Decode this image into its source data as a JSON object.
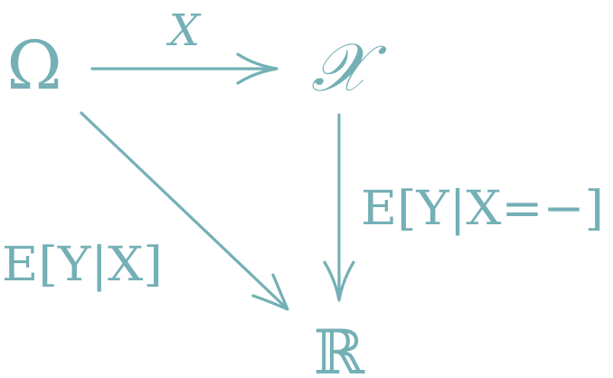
{
  "diagram": {
    "nodes": {
      "omega": "Ω",
      "script_x": "𝒳",
      "reals": "ℝ"
    },
    "edge_labels": {
      "top": "X",
      "right": "E[Y|X=−]",
      "diagonal": "E[Y|X]"
    },
    "color": "#74b0b6"
  }
}
